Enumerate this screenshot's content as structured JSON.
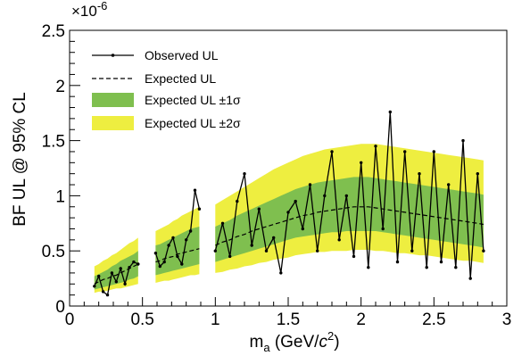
{
  "chart_data": {
    "type": "line",
    "xlabel": "m_a (GeV/c^2)",
    "ylabel": "BF UL @ 95% CL",
    "y_multiplier": "×10^-6",
    "xlim": [
      0,
      3
    ],
    "ylim": [
      0,
      2.5
    ],
    "x_ticks": [
      "0",
      "0.5",
      "1",
      "1.5",
      "2",
      "2.5",
      "3"
    ],
    "y_ticks": [
      "0",
      "0.5",
      "1",
      "1.5",
      "2",
      "2.5"
    ],
    "legend": {
      "placement": "top-left",
      "entries": [
        "Observed UL",
        "Expected UL",
        "Expected UL ±1σ",
        "Expected UL ±2σ"
      ]
    },
    "colors": {
      "observed": "#000000",
      "expected": "#000000",
      "band_1sigma": "#7fbf4f",
      "band_2sigma": "#eeee40"
    },
    "segments": [
      {
        "x": [
          0.17,
          0.2,
          0.23,
          0.26,
          0.29,
          0.32,
          0.35,
          0.38,
          0.41,
          0.44,
          0.47
        ],
        "expected": [
          0.2,
          0.22,
          0.24,
          0.25,
          0.27,
          0.28,
          0.3,
          0.32,
          0.34,
          0.36,
          0.38
        ],
        "one_sigma_low": [
          0.15,
          0.16,
          0.17,
          0.18,
          0.19,
          0.2,
          0.21,
          0.22,
          0.24,
          0.25,
          0.27
        ],
        "one_sigma_high": [
          0.27,
          0.29,
          0.31,
          0.33,
          0.36,
          0.38,
          0.41,
          0.43,
          0.45,
          0.47,
          0.5
        ],
        "two_sigma_low": [
          0.12,
          0.13,
          0.13,
          0.14,
          0.15,
          0.16,
          0.16,
          0.17,
          0.18,
          0.19,
          0.2
        ],
        "two_sigma_high": [
          0.36,
          0.38,
          0.41,
          0.43,
          0.46,
          0.48,
          0.51,
          0.54,
          0.57,
          0.59,
          0.62
        ],
        "observed": [
          0.18,
          0.27,
          0.13,
          0.1,
          0.3,
          0.22,
          0.34,
          0.2,
          0.35,
          0.4,
          0.38
        ]
      },
      {
        "x": [
          0.59,
          0.62,
          0.65,
          0.68,
          0.71,
          0.74,
          0.77,
          0.8,
          0.83,
          0.86,
          0.89
        ],
        "expected": [
          0.4,
          0.41,
          0.43,
          0.44,
          0.45,
          0.47,
          0.48,
          0.49,
          0.5,
          0.51,
          0.52
        ],
        "one_sigma_low": [
          0.28,
          0.29,
          0.3,
          0.31,
          0.32,
          0.33,
          0.34,
          0.35,
          0.36,
          0.37,
          0.38
        ],
        "one_sigma_high": [
          0.55,
          0.56,
          0.58,
          0.6,
          0.62,
          0.64,
          0.66,
          0.68,
          0.7,
          0.71,
          0.72
        ],
        "two_sigma_low": [
          0.21,
          0.22,
          0.23,
          0.23,
          0.24,
          0.25,
          0.26,
          0.27,
          0.28,
          0.28,
          0.29
        ],
        "two_sigma_high": [
          0.68,
          0.7,
          0.72,
          0.74,
          0.77,
          0.79,
          0.82,
          0.84,
          0.86,
          0.88,
          0.9
        ],
        "observed": [
          0.48,
          0.36,
          0.4,
          0.55,
          0.62,
          0.45,
          0.38,
          0.6,
          0.68,
          1.05,
          0.88
        ]
      },
      {
        "x": [
          1.0,
          1.05,
          1.1,
          1.15,
          1.2,
          1.25,
          1.3,
          1.35,
          1.4,
          1.45,
          1.5,
          1.55,
          1.6,
          1.65,
          1.7,
          1.75,
          1.8,
          1.85,
          1.9,
          1.95,
          2.0,
          2.05,
          2.1,
          2.15,
          2.2,
          2.25,
          2.3,
          2.35,
          2.4,
          2.45,
          2.5,
          2.55,
          2.6,
          2.65,
          2.7,
          2.75,
          2.8,
          2.84
        ],
        "expected": [
          0.55,
          0.58,
          0.6,
          0.63,
          0.65,
          0.68,
          0.7,
          0.72,
          0.74,
          0.76,
          0.78,
          0.8,
          0.82,
          0.83,
          0.85,
          0.86,
          0.87,
          0.88,
          0.89,
          0.9,
          0.9,
          0.9,
          0.89,
          0.88,
          0.87,
          0.86,
          0.85,
          0.84,
          0.83,
          0.82,
          0.81,
          0.8,
          0.79,
          0.78,
          0.77,
          0.76,
          0.75,
          0.74
        ],
        "one_sigma_low": [
          0.4,
          0.42,
          0.44,
          0.46,
          0.48,
          0.5,
          0.52,
          0.54,
          0.56,
          0.58,
          0.6,
          0.62,
          0.63,
          0.64,
          0.65,
          0.66,
          0.67,
          0.67,
          0.68,
          0.68,
          0.68,
          0.68,
          0.68,
          0.67,
          0.66,
          0.65,
          0.64,
          0.63,
          0.62,
          0.61,
          0.6,
          0.59,
          0.58,
          0.57,
          0.56,
          0.55,
          0.54,
          0.53
        ],
        "one_sigma_high": [
          0.72,
          0.75,
          0.78,
          0.82,
          0.85,
          0.88,
          0.91,
          0.94,
          0.97,
          1.0,
          1.03,
          1.06,
          1.08,
          1.1,
          1.12,
          1.13,
          1.14,
          1.15,
          1.16,
          1.17,
          1.17,
          1.17,
          1.16,
          1.15,
          1.14,
          1.13,
          1.12,
          1.11,
          1.1,
          1.09,
          1.08,
          1.07,
          1.06,
          1.05,
          1.04,
          1.03,
          1.02,
          1.01
        ],
        "two_sigma_low": [
          0.3,
          0.31,
          0.33,
          0.34,
          0.36,
          0.37,
          0.39,
          0.4,
          0.42,
          0.43,
          0.44,
          0.46,
          0.47,
          0.48,
          0.49,
          0.49,
          0.5,
          0.5,
          0.5,
          0.51,
          0.51,
          0.51,
          0.5,
          0.5,
          0.49,
          0.48,
          0.48,
          0.47,
          0.46,
          0.46,
          0.45,
          0.44,
          0.43,
          0.42,
          0.41,
          0.41,
          0.4,
          0.39
        ],
        "two_sigma_high": [
          0.92,
          0.96,
          1.0,
          1.04,
          1.08,
          1.12,
          1.16,
          1.2,
          1.24,
          1.27,
          1.3,
          1.33,
          1.36,
          1.38,
          1.4,
          1.42,
          1.43,
          1.44,
          1.45,
          1.46,
          1.47,
          1.47,
          1.47,
          1.46,
          1.45,
          1.44,
          1.43,
          1.42,
          1.41,
          1.4,
          1.39,
          1.38,
          1.37,
          1.36,
          1.35,
          1.34,
          1.33,
          1.32
        ],
        "observed": [
          0.5,
          0.75,
          0.45,
          0.95,
          1.2,
          0.55,
          0.88,
          0.5,
          0.62,
          0.3,
          0.85,
          0.95,
          0.7,
          1.1,
          0.5,
          1.0,
          1.4,
          0.6,
          1.0,
          0.45,
          1.3,
          0.35,
          1.45,
          0.7,
          1.76,
          0.4,
          1.4,
          0.5,
          1.2,
          0.35,
          1.4,
          0.4,
          1.1,
          0.35,
          1.5,
          0.25,
          1.2,
          0.5
        ]
      }
    ]
  }
}
